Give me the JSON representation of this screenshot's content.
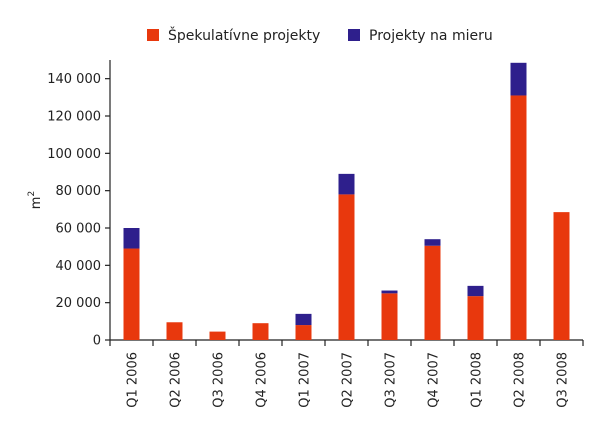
{
  "chart_data": {
    "type": "bar",
    "stacked": true,
    "title": "",
    "xlabel": "",
    "ylabel": "m2",
    "ylabel_base": "m",
    "ylabel_sup": "2",
    "ylim": [
      0,
      150000
    ],
    "yticks": [
      0,
      20000,
      40000,
      60000,
      80000,
      100000,
      120000,
      140000
    ],
    "ytick_labels": [
      "0",
      "20 000",
      "40 000",
      "60 000",
      "80 000",
      "100 000",
      "120 000",
      "140 000"
    ],
    "categories": [
      "Q1 2006",
      "Q2 2006",
      "Q3 2006",
      "Q4 2006",
      "Q1 2007",
      "Q2 2007",
      "Q3 2007",
      "Q4 2007",
      "Q1 2008",
      "Q2 2008",
      "Q3 2008"
    ],
    "series": [
      {
        "name": "Špekulatívne projekty",
        "color": "#e8380d",
        "values": [
          49000,
          9500,
          4500,
          9000,
          8000,
          78000,
          25000,
          50500,
          23500,
          131000,
          68500
        ]
      },
      {
        "name": "Projekty na mieru",
        "color": "#2e1f8c",
        "values": [
          11000,
          0,
          0,
          0,
          6000,
          11000,
          1500,
          3500,
          5500,
          17500,
          0
        ]
      }
    ],
    "legend_position": "top-center",
    "grid": false
  }
}
